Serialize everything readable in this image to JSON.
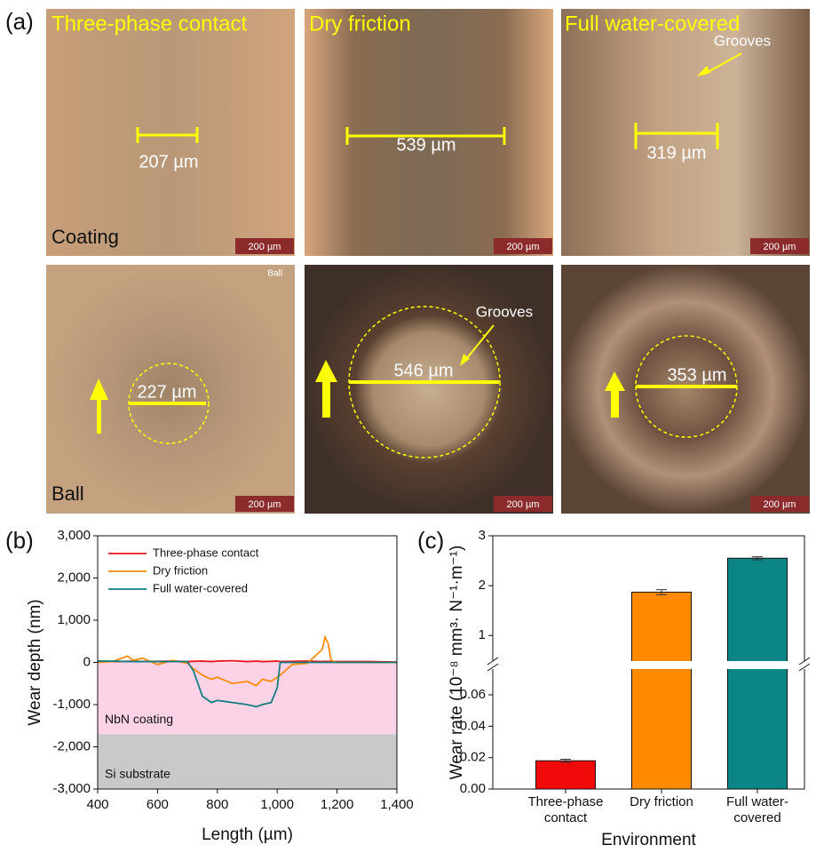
{
  "micrographs": {
    "label": "(a)",
    "columns": [
      "Three-phase contact",
      "Dry friction",
      "Full water-covered"
    ],
    "rows": [
      "Coating",
      "Ball"
    ],
    "widths": [
      [
        "207 µm",
        "539 µm",
        "319 µm"
      ],
      [
        "227 µm",
        "546 µm",
        "353 µm"
      ]
    ],
    "annotations": [
      "Grooves",
      "Grooves"
    ],
    "ball_tag": "Ball",
    "scale_bar": "200 µm"
  },
  "chart_data": [
    {
      "type": "line",
      "panel": "(b)",
      "x_label": "Length (µm)",
      "y_label": "Wear depth (nm)",
      "x": [
        400,
        450,
        500,
        520,
        550,
        600,
        650,
        700,
        720,
        750,
        780,
        800,
        850,
        900,
        930,
        950,
        980,
        1000,
        1010,
        1050,
        1100,
        1150,
        1160,
        1170,
        1180,
        1200,
        1300,
        1400
      ],
      "series": [
        {
          "name": "Three-phase contact",
          "color": "#e8141c",
          "values": [
            30,
            20,
            25,
            30,
            20,
            25,
            30,
            20,
            25,
            30,
            20,
            30,
            40,
            20,
            30,
            20,
            25,
            30,
            20,
            25,
            30,
            20,
            25,
            20,
            30,
            20,
            20,
            10
          ]
        },
        {
          "name": "Dry friction",
          "color": "#ff8c10",
          "values": [
            0,
            20,
            150,
            50,
            100,
            -50,
            50,
            -20,
            -150,
            -300,
            -400,
            -350,
            -500,
            -450,
            -550,
            -400,
            -450,
            -350,
            -300,
            -50,
            -20,
            300,
            600,
            450,
            50,
            0,
            0,
            0
          ]
        },
        {
          "name": "Full water-covered",
          "color": "#127e80",
          "values": [
            30,
            30,
            20,
            20,
            20,
            20,
            20,
            20,
            -200,
            -800,
            -950,
            -900,
            -950,
            -1000,
            -1050,
            -1000,
            -950,
            -600,
            0,
            0,
            0,
            0,
            0,
            0,
            0,
            0,
            0,
            0
          ]
        }
      ],
      "regions": [
        {
          "label": "NbN coating",
          "from": 0,
          "to": -1700,
          "color": "#fcd3e6"
        },
        {
          "label": "Si substrate",
          "from": -1700,
          "to": -3000,
          "color": "#c9c9c9"
        }
      ],
      "xlim": [
        400,
        1400
      ],
      "xticks": [
        400,
        600,
        800,
        {
          "value": 1000,
          "label": "1,000"
        },
        {
          "value": 1200,
          "label": "1,200"
        },
        {
          "value": 1400,
          "label": "1,400"
        }
      ],
      "ylim": [
        -3000,
        3000
      ],
      "yticks": [
        {
          "value": 3000,
          "label": "3,000"
        },
        {
          "value": 2000,
          "label": "2,000"
        },
        {
          "value": 1000,
          "label": "1,000"
        },
        0,
        {
          "value": -1000,
          "label": "-1,000"
        },
        {
          "value": -2000,
          "label": "-2,000"
        },
        {
          "value": -3000,
          "label": "-3,000"
        }
      ],
      "legend": "upper-left"
    },
    {
      "type": "bar",
      "panel": "(c)",
      "x_label": "Environment",
      "y_label": "Wear rate (10⁻⁸ mm³· N⁻¹·m⁻¹)",
      "categories": [
        "Three-phase contact",
        "Dry friction",
        "Full water-covered"
      ],
      "values": [
        0.018,
        1.87,
        2.55
      ],
      "errors": [
        0.001,
        0.05,
        0.03
      ],
      "colors": [
        "#f00a0a",
        "#ff8a00",
        "#0b8585"
      ],
      "segments": [
        {
          "ylim": [
            0,
            0.077
          ],
          "yticks": [
            {
              "value": 0,
              "label": "0.00"
            },
            0.02,
            0.04,
            0.06
          ]
        },
        {
          "ylim": [
            0.47,
            3
          ],
          "yticks": [
            1,
            2,
            3
          ]
        }
      ]
    }
  ]
}
